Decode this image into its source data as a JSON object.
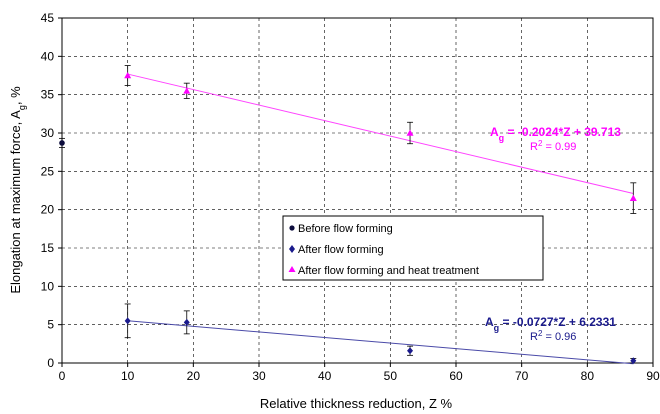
{
  "chart_data": {
    "type": "scatter",
    "xlabel": "Relative thickness reduction, Z %",
    "ylabel_prefix": "Elongation at maximum force, A",
    "ylabel_sub": "g",
    "ylabel_suffix": ", %",
    "xlim": [
      0,
      90
    ],
    "ylim": [
      0,
      45
    ],
    "x_ticks": [
      0,
      10,
      20,
      30,
      40,
      50,
      60,
      70,
      80,
      90
    ],
    "y_ticks": [
      0,
      5,
      10,
      15,
      20,
      25,
      30,
      35,
      40,
      45
    ],
    "grid": true,
    "legend_position": "center-right",
    "series": [
      {
        "name": "Before flow forming",
        "marker": "circle",
        "color": "#0d0d3d",
        "points": [
          {
            "x": 0,
            "y": 28.7,
            "err": 0.6
          }
        ]
      },
      {
        "name": "After flow forming",
        "marker": "diamond",
        "color": "#1a1a8c",
        "points": [
          {
            "x": 10,
            "y": 5.5,
            "err": 2.2
          },
          {
            "x": 19,
            "y": 5.3,
            "err": 1.5
          },
          {
            "x": 53,
            "y": 1.6,
            "err": 0.6
          },
          {
            "x": 87,
            "y": 0.3,
            "err": 0.3
          }
        ],
        "trendline": {
          "slope": -0.0727,
          "intercept": 6.2331,
          "x_range": [
            10,
            87
          ],
          "color": "#4a4aa8"
        }
      },
      {
        "name": "After flow forming and heat treatment",
        "marker": "triangle",
        "color": "#ff00ff",
        "points": [
          {
            "x": 10,
            "y": 37.5,
            "err": 1.3
          },
          {
            "x": 19,
            "y": 35.5,
            "err": 1.0
          },
          {
            "x": 53,
            "y": 30.0,
            "err": 1.4
          },
          {
            "x": 87,
            "y": 21.5,
            "err": 2.0
          }
        ],
        "trendline": {
          "slope": -0.2024,
          "intercept": 39.713,
          "x_range": [
            10,
            87
          ],
          "color": "#ff44ff"
        }
      }
    ],
    "annotations": [
      {
        "prefix": "A",
        "sub": "g",
        "text": " = -0.2024*Z + 39.713",
        "r2_base": "R",
        "r2_sup": "2",
        "r2_text": " = 0.99",
        "color": "#ff00ff"
      },
      {
        "prefix": "A",
        "sub": "g",
        "text": " = -0.0727*Z + 6.2331",
        "r2_base": "R",
        "r2_sup": "2",
        "r2_text": " = 0.96",
        "color": "#1a1a8c"
      }
    ]
  }
}
